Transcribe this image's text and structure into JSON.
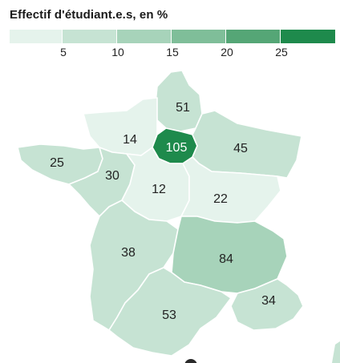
{
  "title": "Effectif d'étudiant.e.s, en %",
  "legend": {
    "colors": [
      "#e5f3ec",
      "#c6e3d3",
      "#a7d3ba",
      "#7fbe99",
      "#55a676",
      "#1e8a4c"
    ],
    "ticks": [
      "5",
      "10",
      "15",
      "20",
      "25"
    ]
  },
  "regions": [
    {
      "id": "hauts-de-france",
      "label": "51",
      "value": 51,
      "color": "#c6e3d3"
    },
    {
      "id": "normandie",
      "label": "14",
      "value": 14,
      "color": "#e5f3ec"
    },
    {
      "id": "ile-de-france",
      "label": "105",
      "value": 105,
      "color": "#1e8a4c"
    },
    {
      "id": "grand-est",
      "label": "45",
      "value": 45,
      "color": "#c6e3d3"
    },
    {
      "id": "bretagne",
      "label": "25",
      "value": 25,
      "color": "#c6e3d3"
    },
    {
      "id": "pays-de-la-loire",
      "label": "30",
      "value": 30,
      "color": "#c6e3d3"
    },
    {
      "id": "centre-val-de-loire",
      "label": "12",
      "value": 12,
      "color": "#e5f3ec"
    },
    {
      "id": "bourgogne-franche-comte",
      "label": "22",
      "value": 22,
      "color": "#e5f3ec"
    },
    {
      "id": "nouvelle-aquitaine",
      "label": "38",
      "value": 38,
      "color": "#c6e3d3"
    },
    {
      "id": "auvergne-rhone-alpes",
      "label": "84",
      "value": 84,
      "color": "#a7d3ba"
    },
    {
      "id": "occitanie",
      "label": "53",
      "value": 53,
      "color": "#c6e3d3"
    },
    {
      "id": "provence-alpes-cote-dazur",
      "label": "34",
      "value": 34,
      "color": "#c6e3d3"
    }
  ]
}
